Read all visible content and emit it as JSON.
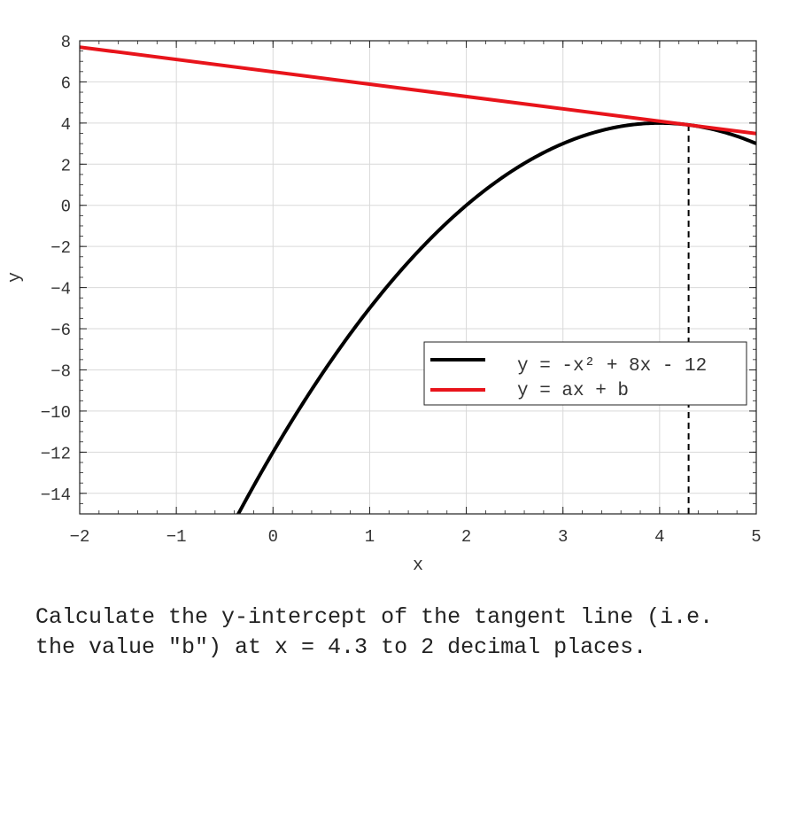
{
  "chart_data": {
    "type": "line",
    "xlabel": "x",
    "ylabel": "y",
    "xlim": [
      -2,
      5
    ],
    "ylim": [
      -15,
      8
    ],
    "xticks": [
      -2,
      -1,
      0,
      1,
      2,
      3,
      4,
      5
    ],
    "yticks": [
      -14,
      -12,
      -10,
      -8,
      -6,
      -4,
      -2,
      0,
      2,
      4,
      6,
      8
    ],
    "grid": true,
    "legend_position": "lower-right",
    "series": [
      {
        "name": "y = -x² + 8x - 12",
        "function": "quadratic",
        "coefficients": [
          -1,
          8,
          -12
        ],
        "color": "#000000"
      },
      {
        "name": "y = ax + b",
        "function": "linear",
        "slope": -0.6,
        "intercept": 6.49,
        "color": "#e8141b"
      }
    ],
    "annotations": [
      {
        "type": "vertical-dashed-line",
        "x": 4.3,
        "color": "#000000"
      }
    ]
  },
  "question": {
    "text": "Calculate the y-intercept of the tangent line (i.e. the value \"b\") at x = 4.3 to 2 decimal places."
  }
}
